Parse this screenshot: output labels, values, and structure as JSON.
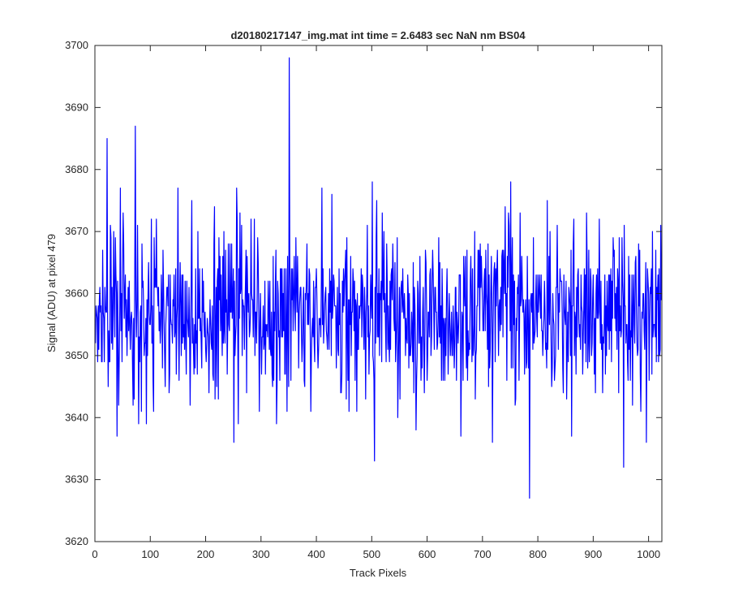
{
  "chart_data": {
    "type": "line",
    "title": "d20180217147_img.mat int time = 2.6483 sec  NaN nm BS04",
    "xlabel": "Track Pixels",
    "ylabel": "Signal (ADU) at pixel 479",
    "xlim": [
      0,
      1024
    ],
    "ylim": [
      3620,
      3700
    ],
    "xticks": [
      0,
      100,
      200,
      300,
      400,
      500,
      600,
      700,
      800,
      900,
      1000
    ],
    "yticks": [
      3620,
      3630,
      3640,
      3650,
      3660,
      3670,
      3680,
      3690,
      3700
    ],
    "grid": false,
    "line_color": "#0000ff",
    "series": [
      {
        "x_start": 1,
        "x_step": 1,
        "noise_model": "random fluctuations about mean",
        "mean": 3657,
        "std": 7,
        "range": [
          3627,
          3698
        ],
        "peaks": [
          {
            "x": 22,
            "y": 3685
          },
          {
            "x": 73,
            "y": 3687
          },
          {
            "x": 351,
            "y": 3698
          },
          {
            "x": 93,
            "y": 3639
          },
          {
            "x": 505,
            "y": 3633
          },
          {
            "x": 718,
            "y": 3636
          },
          {
            "x": 785,
            "y": 3627
          },
          {
            "x": 955,
            "y": 3632
          }
        ]
      }
    ]
  }
}
